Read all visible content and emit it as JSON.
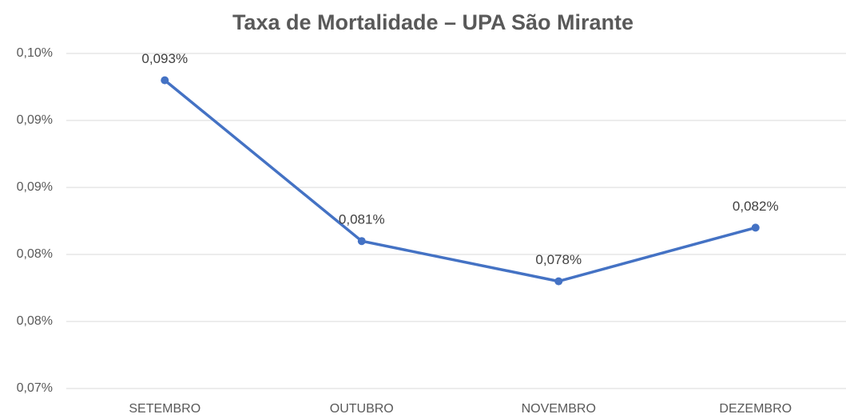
{
  "chart_data": {
    "type": "line",
    "title": "Taxa de Mortalidade – UPA São Mirante",
    "categories": [
      "SETEMBRO",
      "OUTUBRO",
      "NOVEMBRO",
      "DEZEMBRO"
    ],
    "series": [
      {
        "name": "Taxa de Mortalidade",
        "color": "#4472c4",
        "values": [
          0.093,
          0.081,
          0.078,
          0.082
        ],
        "value_labels": [
          "0,093%",
          "0,081%",
          "0,078%",
          "0,082%"
        ]
      }
    ],
    "ylim": [
      0.07,
      0.095
    ],
    "yticks": [
      {
        "value": 0.07,
        "label": "0,07%"
      },
      {
        "value": 0.075,
        "label": "0,08%"
      },
      {
        "value": 0.08,
        "label": "0,08%"
      },
      {
        "value": 0.085,
        "label": "0,09%"
      },
      {
        "value": 0.09,
        "label": "0,09%"
      },
      {
        "value": 0.095,
        "label": "0,10%"
      }
    ],
    "grid": true
  }
}
